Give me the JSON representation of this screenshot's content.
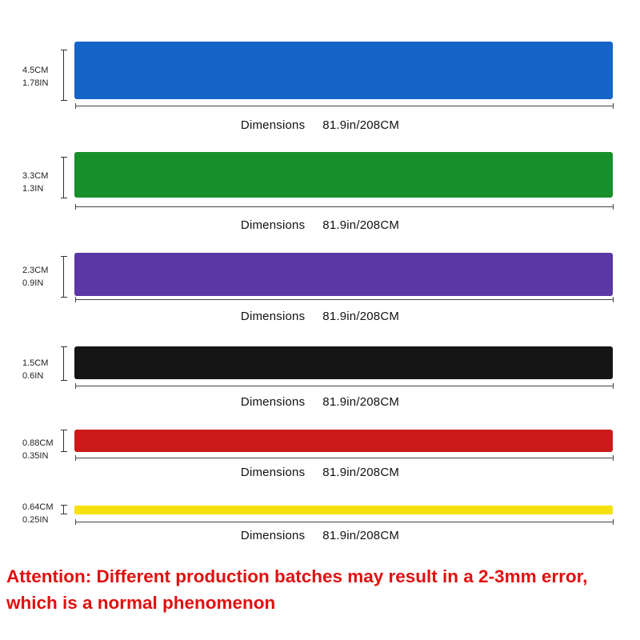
{
  "bands": [
    {
      "color": "#1565c8",
      "width_cm": "4.5CM",
      "width_in": "1.78IN",
      "dimension_label": "Dimensions",
      "dimension_value": "81.9in/208CM"
    },
    {
      "color": "#17902b",
      "width_cm": "3.3CM",
      "width_in": "1.3IN",
      "dimension_label": "Dimensions",
      "dimension_value": "81.9in/208CM"
    },
    {
      "color": "#5b36a5",
      "width_cm": "2.3CM",
      "width_in": "0.9IN",
      "dimension_label": "Dimensions",
      "dimension_value": "81.9in/208CM"
    },
    {
      "color": "#151515",
      "width_cm": "1.5CM",
      "width_in": "0.6IN",
      "dimension_label": "Dimensions",
      "dimension_value": "81.9in/208CM"
    },
    {
      "color": "#cc1a1a",
      "width_cm": "0.88CM",
      "width_in": "0.35IN",
      "dimension_label": "Dimensions",
      "dimension_value": "81.9in/208CM"
    },
    {
      "color": "#f5e10f",
      "width_cm": "0.64CM",
      "width_in": "0.25IN",
      "dimension_label": "Dimensions",
      "dimension_value": "81.9in/208CM"
    }
  ],
  "notice": {
    "line1": "Attention: Different production batches may result in a 2-3mm error,",
    "line2": "which is a normal phenomenon",
    "color": "#e01010"
  }
}
